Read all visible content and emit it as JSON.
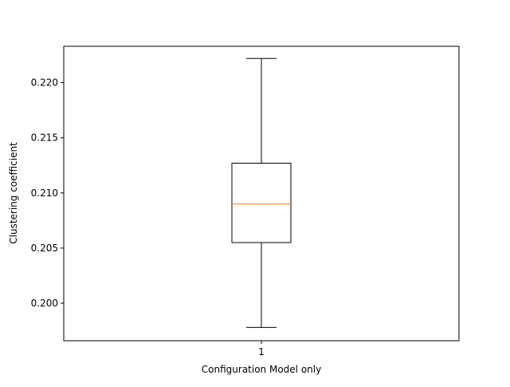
{
  "chart_data": {
    "type": "box",
    "title": "",
    "xlabel": "Configuration Model only",
    "ylabel": "Clustering coefficient",
    "categories": [
      "1"
    ],
    "ylim": [
      0.1966,
      0.2233
    ],
    "yticks": [
      0.2,
      0.205,
      0.21,
      0.215,
      0.22
    ],
    "ytick_labels": [
      "0.200",
      "0.205",
      "0.210",
      "0.215",
      "0.220"
    ],
    "grid": false,
    "boxes": [
      {
        "category": "1",
        "whisker_low": 0.1978,
        "q1": 0.2055,
        "median": 0.209,
        "q3": 0.2127,
        "whisker_high": 0.2222
      }
    ],
    "colors": {
      "box": "#000000",
      "median": "#ff7f0e",
      "axes": "#000000"
    }
  }
}
